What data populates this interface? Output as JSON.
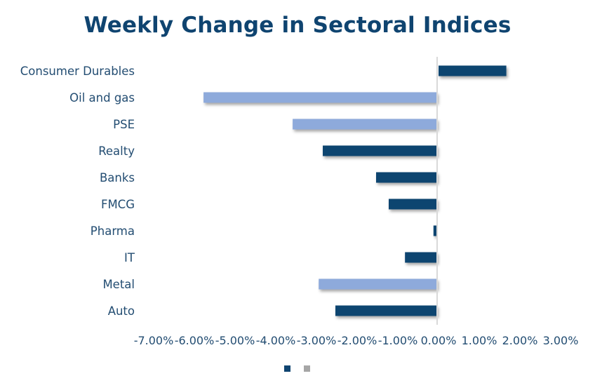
{
  "chart_data": {
    "type": "bar",
    "orientation": "horizontal",
    "title": "Weekly Change in Sectoral Indices",
    "xlabel": "",
    "ylabel": "",
    "categories": [
      "Consumer Durables",
      "Oil and gas",
      "PSE",
      "Realty",
      "Banks",
      "FMCG",
      "Pharma",
      "IT",
      "Metal",
      "Auto"
    ],
    "values": [
      1.7,
      -5.74,
      -3.55,
      -2.81,
      -1.5,
      -1.19,
      -0.09,
      -0.79,
      -2.91,
      -2.5
    ],
    "value_unit": "%",
    "bar_colors": [
      "#0f4470",
      "#8eaadb",
      "#8eaadb",
      "#0f4470",
      "#0f4470",
      "#0f4470",
      "#0f4470",
      "#0f4470",
      "#8eaadb",
      "#0f4470"
    ],
    "xlim": [
      -7,
      3
    ],
    "x_ticks": [
      -7,
      -6,
      -5,
      -4,
      -3,
      -2,
      -1,
      0,
      1,
      2,
      3
    ],
    "x_tick_labels": [
      "-7.00%",
      "-6.00%",
      "-5.00%",
      "-4.00%",
      "-3.00%",
      "-2.00%",
      "-1.00%",
      "0.00%",
      "1.00%",
      "2.00%",
      "3.00%"
    ],
    "grid": false,
    "legend": {
      "placement": "bottom",
      "entries": [
        {
          "label": "",
          "color": "#0f4470"
        },
        {
          "label": "",
          "color": "#a6a6a6"
        }
      ]
    }
  },
  "colors": {
    "title": "#0f4470",
    "text": "#234d72",
    "axis_line": "#d9d9d9"
  }
}
